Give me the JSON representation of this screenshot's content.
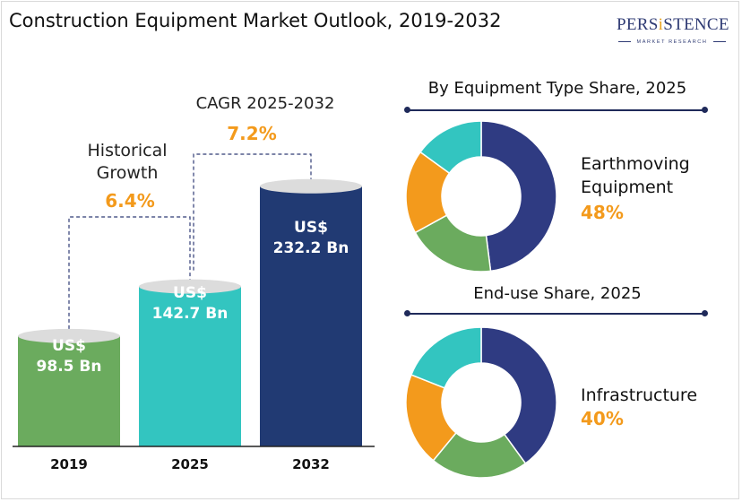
{
  "title": "Construction Equipment Market Outlook, 2019-2032",
  "logo": {
    "pre": "PERS",
    "hi": "i",
    "post": "STENCE",
    "sub": "MARKET RESEARCH"
  },
  "colors": {
    "bar_2019": "#6bab5e",
    "bar_2025": "#33c5c0",
    "bar_2032": "#213a73",
    "accent": "#f39a1c",
    "donut": [
      "#2f3b82",
      "#6bab5e",
      "#f39a1c",
      "#33c5c0"
    ]
  },
  "annotations": {
    "historical_label": "Historical Growth",
    "historical_value": "6.4%",
    "cagr_label": "CAGR 2025-2032",
    "cagr_value": "7.2%"
  },
  "chart_data": [
    {
      "type": "bar",
      "categories": [
        "2019",
        "2025",
        "2032"
      ],
      "values": [
        98.5,
        142.7,
        232.2
      ],
      "value_labels": [
        "US$ 98.5 Bn",
        "US$ 142.7 Bn",
        "US$ 232.2 Bn"
      ],
      "unit": "US$ Bn"
    },
    {
      "type": "pie",
      "title": "By Equipment Type  Share, 2025",
      "highlight_label": "Earthmoving Equipment",
      "highlight_value": "48%",
      "slices": [
        48,
        19,
        18,
        15
      ]
    },
    {
      "type": "pie",
      "title": "End-use Share, 2025",
      "highlight_label": "Infrastructure",
      "highlight_value": "40%",
      "slices": [
        40,
        21,
        20,
        19
      ]
    }
  ]
}
